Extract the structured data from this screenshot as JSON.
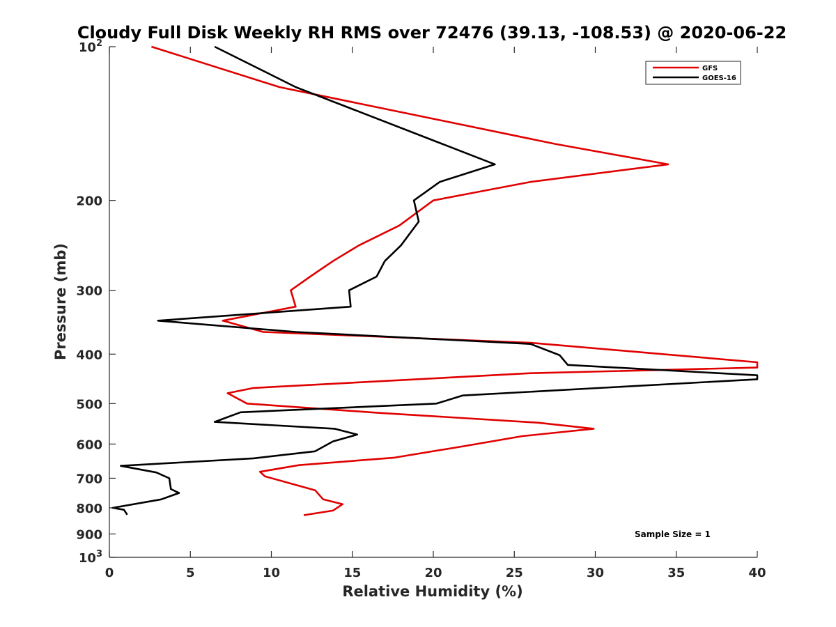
{
  "chart_data": {
    "type": "line",
    "title": "Cloudy Full Disk Weekly RH RMS over 72476 (39.13, -108.53) @ 2020-06-22",
    "xlabel": "Relative Humidity (%)",
    "ylabel": "Pressure (mb)",
    "xlim": [
      0,
      40
    ],
    "ylim": [
      100,
      1000
    ],
    "yscale": "log",
    "yreversed": true,
    "grid": false,
    "legend_position": "top-right",
    "x_ticks": [
      "0",
      "5",
      "10",
      "15",
      "20",
      "25",
      "30",
      "35",
      "40"
    ],
    "y_ticks": [
      {
        "value": 100,
        "label": "10",
        "sup": "2"
      },
      {
        "value": 200,
        "label": "200",
        "sup": ""
      },
      {
        "value": 300,
        "label": "300",
        "sup": ""
      },
      {
        "value": 400,
        "label": "400",
        "sup": ""
      },
      {
        "value": 500,
        "label": "500",
        "sup": ""
      },
      {
        "value": 600,
        "label": "600",
        "sup": ""
      },
      {
        "value": 700,
        "label": "700",
        "sup": ""
      },
      {
        "value": 800,
        "label": "800",
        "sup": ""
      },
      {
        "value": 900,
        "label": "900",
        "sup": ""
      },
      {
        "value": 1000,
        "label": "10",
        "sup": "3"
      }
    ],
    "series": [
      {
        "name": "GFS",
        "color": "#e00000",
        "points": [
          [
            2.6,
            100
          ],
          [
            10.5,
            120
          ],
          [
            27.5,
            155
          ],
          [
            34.5,
            170
          ],
          [
            26,
            184
          ],
          [
            20,
            200
          ],
          [
            17.9,
            224
          ],
          [
            15.4,
            245
          ],
          [
            13.8,
            263
          ],
          [
            12.4,
            282
          ],
          [
            11.2,
            300
          ],
          [
            11.5,
            323
          ],
          [
            7,
            344
          ],
          [
            9.5,
            362
          ],
          [
            26,
            380
          ],
          [
            40,
            415
          ],
          [
            40,
            425
          ],
          [
            26,
            436
          ],
          [
            8.9,
            466
          ],
          [
            7.3,
            477
          ],
          [
            8.5,
            500
          ],
          [
            16.5,
            521
          ],
          [
            26.5,
            545
          ],
          [
            29.9,
            560
          ],
          [
            25.5,
            579
          ],
          [
            22,
            605
          ],
          [
            17.6,
            638
          ],
          [
            11.7,
            660
          ],
          [
            9.3,
            680
          ],
          [
            9.6,
            694
          ],
          [
            12.7,
            739
          ],
          [
            13.2,
            770
          ],
          [
            14.4,
            787
          ],
          [
            13.8,
            810
          ],
          [
            12,
            827
          ]
        ]
      },
      {
        "name": "GOES-16",
        "color": "#000000",
        "points": [
          [
            6.5,
            100
          ],
          [
            11.5,
            120
          ],
          [
            23.8,
            170
          ],
          [
            20.4,
            184
          ],
          [
            18.8,
            200
          ],
          [
            19.1,
            220
          ],
          [
            18,
            245
          ],
          [
            17,
            263
          ],
          [
            16.5,
            282
          ],
          [
            14.8,
            300
          ],
          [
            14.9,
            323
          ],
          [
            3,
            344
          ],
          [
            11.5,
            362
          ],
          [
            26,
            382
          ],
          [
            27.8,
            402
          ],
          [
            28.3,
            420
          ],
          [
            40,
            440
          ],
          [
            40,
            448
          ],
          [
            21.8,
            482
          ],
          [
            20.2,
            500
          ],
          [
            8.1,
            520
          ],
          [
            6.5,
            543
          ],
          [
            13.9,
            560
          ],
          [
            15.3,
            575
          ],
          [
            13.8,
            593
          ],
          [
            12.7,
            620
          ],
          [
            8.9,
            640
          ],
          [
            0.7,
            662
          ],
          [
            2.9,
            682
          ],
          [
            3.7,
            700
          ],
          [
            3.8,
            735
          ],
          [
            4.3,
            748
          ],
          [
            3.2,
            770
          ],
          [
            0.2,
            800
          ],
          [
            0.9,
            807
          ],
          [
            1.1,
            825
          ]
        ]
      }
    ],
    "annotation": "Sample Size = 1"
  }
}
